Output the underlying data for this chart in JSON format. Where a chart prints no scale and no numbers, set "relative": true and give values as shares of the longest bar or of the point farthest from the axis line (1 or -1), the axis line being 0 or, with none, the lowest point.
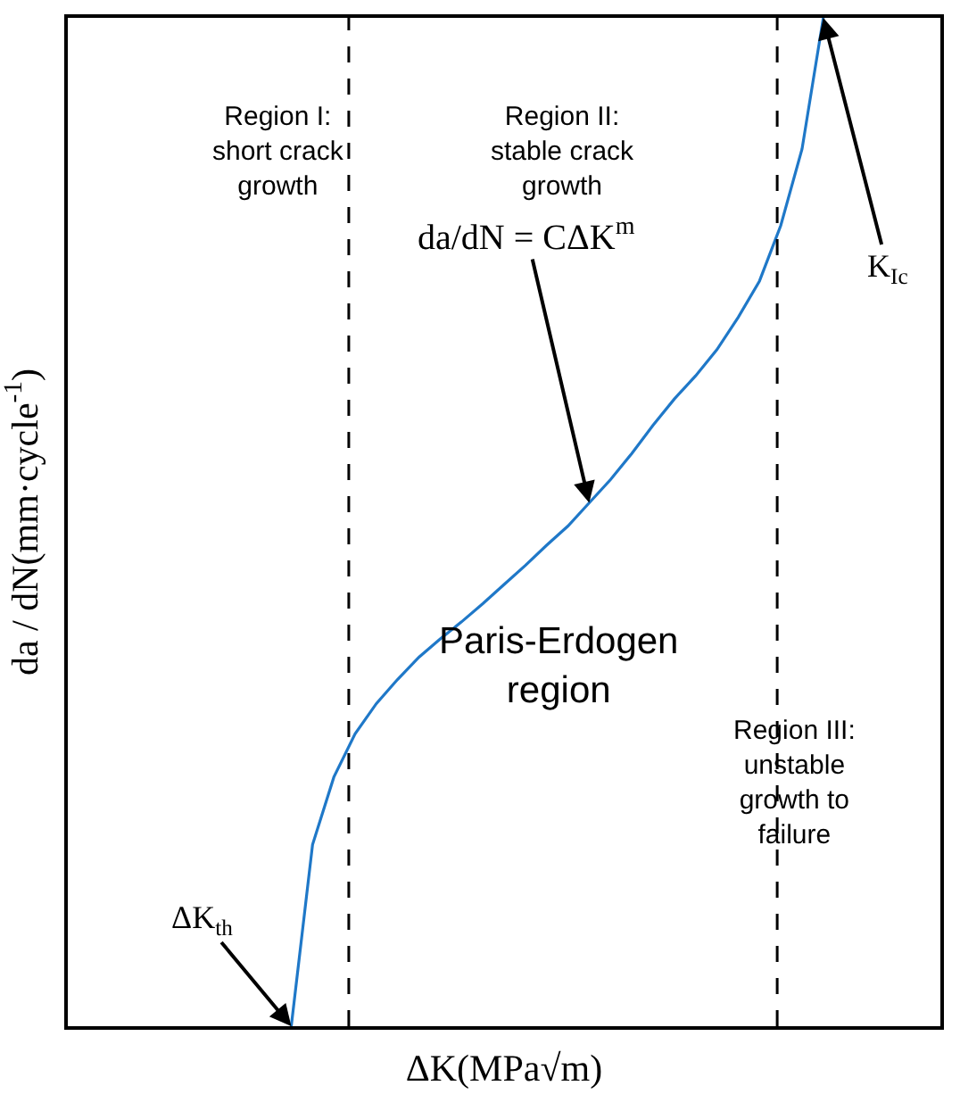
{
  "chart_data": {
    "type": "line",
    "relative": true,
    "xlabel": "ΔK(MPa√m)",
    "ylabel": "da / dN(mm·cycle$^{-1}$)",
    "categories": [
      null,
      null,
      null,
      null,
      null,
      null,
      null,
      null,
      null,
      null,
      null,
      null,
      null,
      null,
      null,
      null,
      null,
      null,
      null,
      null,
      null,
      null,
      null,
      null,
      null,
      null,
      null,
      null,
      null,
      null,
      null,
      null,
      null,
      null,
      null,
      null,
      null,
      null,
      null,
      null,
      null
    ],
    "tick_labels": false,
    "legend": false,
    "marker": "none",
    "line_style": "solid",
    "series": [
      {
        "color": "#1f78c8",
        "values": [
          null,
          null,
          null,
          null,
          null,
          null,
          null,
          null,
          null,
          null,
          0,
          0.18,
          0.247,
          0.29,
          0.32,
          0.344,
          0.366,
          0.384,
          0.401,
          0.419,
          0.438,
          0.457,
          0.477,
          0.496,
          0.519,
          0.542,
          0.568,
          0.596,
          0.622,
          0.645,
          0.671,
          0.703,
          0.739,
          0.794,
          0.87,
          1.0,
          null,
          null,
          null,
          null,
          null
        ]
      }
    ],
    "annotations": [
      "Region I:\nshort crack\ngrowth",
      "Region II:\nstable crack\ngrowth",
      "da/dN = CΔK$^{m}$",
      "Paris-Erdogen\nregion",
      "Region III:\nunstable\ngrowth to\nfailure",
      "ΔK$_{th}$",
      "K$_{Ic}$"
    ]
  }
}
